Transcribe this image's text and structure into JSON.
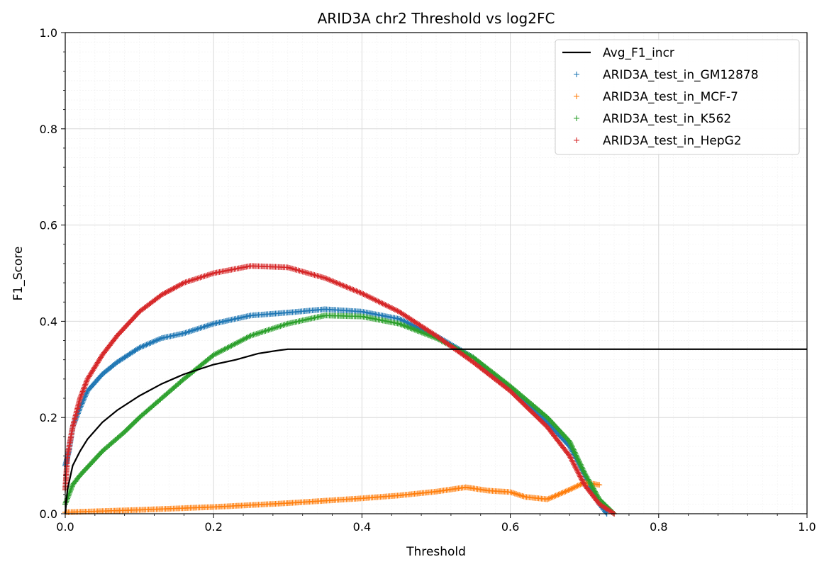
{
  "chart_data": {
    "type": "scatter",
    "title": "ARID3A chr2 Threshold vs log2FC",
    "xlabel": "Threshold",
    "ylabel": "F1_Score",
    "xlim": [
      0,
      1
    ],
    "ylim": [
      0,
      1
    ],
    "x_ticks": [
      "0.0",
      "0.2",
      "0.4",
      "0.6",
      "0.8",
      "1.0"
    ],
    "y_ticks": [
      "0.0",
      "0.2",
      "0.4",
      "0.6",
      "0.8",
      "1.0"
    ],
    "grid": true,
    "legend_position": "top-right",
    "series": [
      {
        "name": "Avg_F1_incr",
        "kind": "line",
        "color": "#000000",
        "points": [
          [
            0,
            0
          ],
          [
            0.003,
            0.05
          ],
          [
            0.01,
            0.1
          ],
          [
            0.02,
            0.13
          ],
          [
            0.03,
            0.155
          ],
          [
            0.05,
            0.19
          ],
          [
            0.07,
            0.215
          ],
          [
            0.1,
            0.245
          ],
          [
            0.13,
            0.27
          ],
          [
            0.16,
            0.29
          ],
          [
            0.2,
            0.31
          ],
          [
            0.23,
            0.32
          ],
          [
            0.26,
            0.333
          ],
          [
            0.29,
            0.34
          ],
          [
            0.3,
            0.342
          ],
          [
            1.0,
            0.342
          ]
        ]
      },
      {
        "name": "ARID3A_test_in_GM12878",
        "kind": "scatter",
        "color": "#1f77b4",
        "points": [
          [
            0,
            0.1
          ],
          [
            0.005,
            0.13
          ],
          [
            0.01,
            0.18
          ],
          [
            0.02,
            0.22
          ],
          [
            0.03,
            0.255
          ],
          [
            0.05,
            0.29
          ],
          [
            0.07,
            0.315
          ],
          [
            0.1,
            0.345
          ],
          [
            0.13,
            0.365
          ],
          [
            0.16,
            0.375
          ],
          [
            0.2,
            0.395
          ],
          [
            0.25,
            0.412
          ],
          [
            0.3,
            0.418
          ],
          [
            0.35,
            0.425
          ],
          [
            0.4,
            0.42
          ],
          [
            0.45,
            0.405
          ],
          [
            0.5,
            0.37
          ],
          [
            0.55,
            0.325
          ],
          [
            0.6,
            0.26
          ],
          [
            0.65,
            0.19
          ],
          [
            0.68,
            0.14
          ],
          [
            0.7,
            0.08
          ],
          [
            0.72,
            0.02
          ],
          [
            0.73,
            0
          ]
        ]
      },
      {
        "name": "ARID3A_test_in_MCF-7",
        "kind": "scatter",
        "color": "#ff7f0e",
        "points": [
          [
            0,
            0.003
          ],
          [
            0.1,
            0.008
          ],
          [
            0.2,
            0.014
          ],
          [
            0.3,
            0.022
          ],
          [
            0.4,
            0.032
          ],
          [
            0.45,
            0.038
          ],
          [
            0.5,
            0.046
          ],
          [
            0.54,
            0.055
          ],
          [
            0.57,
            0.048
          ],
          [
            0.6,
            0.045
          ],
          [
            0.62,
            0.035
          ],
          [
            0.65,
            0.03
          ],
          [
            0.68,
            0.05
          ],
          [
            0.7,
            0.065
          ],
          [
            0.72,
            0.06
          ]
        ]
      },
      {
        "name": "ARID3A_test_in_K562",
        "kind": "scatter",
        "color": "#2ca02c",
        "points": [
          [
            0,
            0.02
          ],
          [
            0.005,
            0.04
          ],
          [
            0.01,
            0.06
          ],
          [
            0.02,
            0.08
          ],
          [
            0.05,
            0.13
          ],
          [
            0.08,
            0.17
          ],
          [
            0.1,
            0.2
          ],
          [
            0.13,
            0.24
          ],
          [
            0.16,
            0.28
          ],
          [
            0.2,
            0.33
          ],
          [
            0.25,
            0.37
          ],
          [
            0.3,
            0.395
          ],
          [
            0.35,
            0.412
          ],
          [
            0.4,
            0.41
          ],
          [
            0.45,
            0.395
          ],
          [
            0.5,
            0.365
          ],
          [
            0.55,
            0.325
          ],
          [
            0.6,
            0.265
          ],
          [
            0.65,
            0.2
          ],
          [
            0.68,
            0.15
          ],
          [
            0.7,
            0.085
          ],
          [
            0.72,
            0.03
          ],
          [
            0.74,
            0
          ]
        ]
      },
      {
        "name": "ARID3A_test_in_HepG2",
        "kind": "scatter",
        "color": "#d62728",
        "points": [
          [
            0,
            0.05
          ],
          [
            0.003,
            0.12
          ],
          [
            0.01,
            0.18
          ],
          [
            0.02,
            0.24
          ],
          [
            0.03,
            0.28
          ],
          [
            0.05,
            0.33
          ],
          [
            0.07,
            0.37
          ],
          [
            0.1,
            0.42
          ],
          [
            0.13,
            0.455
          ],
          [
            0.16,
            0.48
          ],
          [
            0.2,
            0.5
          ],
          [
            0.25,
            0.515
          ],
          [
            0.3,
            0.512
          ],
          [
            0.35,
            0.49
          ],
          [
            0.4,
            0.458
          ],
          [
            0.45,
            0.42
          ],
          [
            0.5,
            0.37
          ],
          [
            0.55,
            0.315
          ],
          [
            0.6,
            0.255
          ],
          [
            0.65,
            0.18
          ],
          [
            0.68,
            0.12
          ],
          [
            0.7,
            0.06
          ],
          [
            0.72,
            0.02
          ],
          [
            0.74,
            0
          ]
        ]
      }
    ]
  }
}
